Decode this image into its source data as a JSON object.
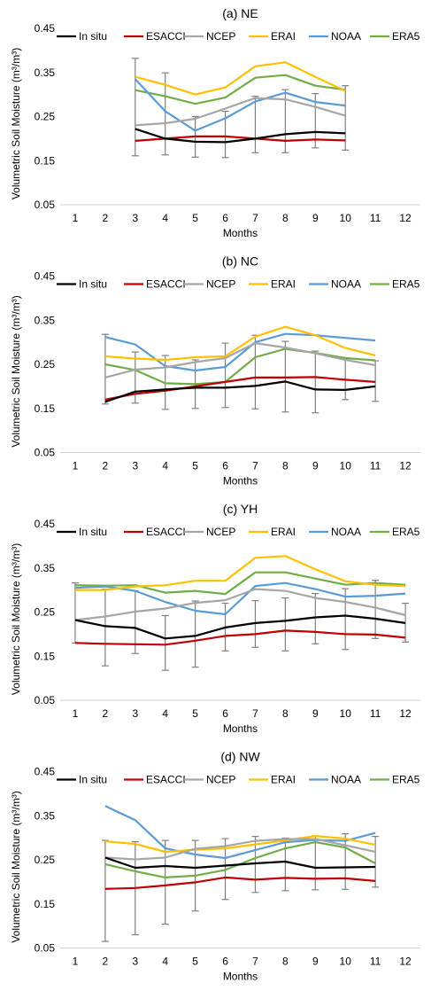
{
  "y_axis_label": "Volumetric Soil Moisture (m³/m³)",
  "x_axis_label": "Months",
  "legend": [
    {
      "key": "insitu",
      "label": "In situ",
      "color": "#000000"
    },
    {
      "key": "esacci",
      "label": "ESACCI",
      "color": "#c00000"
    },
    {
      "key": "ncep",
      "label": "NCEP",
      "color": "#a6a6a6"
    },
    {
      "key": "erai",
      "label": "ERAI",
      "color": "#ffc000"
    },
    {
      "key": "noaa",
      "label": "NOAA",
      "color": "#5b9bd5"
    },
    {
      "key": "era5",
      "label": "ERA5",
      "color": "#70ad47"
    }
  ],
  "chart_data": [
    {
      "type": "line",
      "title": "(a) NE",
      "xlabel": "Months",
      "ylabel": "Volumetric Soil Moisture (m³/m³)",
      "xlim": [
        0.5,
        12.5
      ],
      "ylim": [
        0.05,
        0.45
      ],
      "xticks": [
        "1",
        "2",
        "3",
        "4",
        "5",
        "6",
        "7",
        "8",
        "9",
        "10",
        "11",
        "12"
      ],
      "yticks": [
        "0.05",
        "0.15",
        "0.25",
        "0.35",
        "0.45"
      ],
      "legend_position": "top",
      "x": [
        3,
        4,
        5,
        6,
        7,
        8,
        9,
        10
      ],
      "series": [
        {
          "name": "In situ",
          "color": "#000000",
          "values": [
            0.222,
            0.2,
            0.193,
            0.192,
            0.2,
            0.21,
            0.215,
            0.212
          ],
          "error_low": [
            0.161,
            0.163,
            0.158,
            0.157,
            0.168,
            0.168,
            0.179,
            0.174
          ],
          "error_high": [
            0.382,
            0.349,
            0.25,
            0.262,
            0.296,
            0.311,
            0.302,
            0.32
          ]
        },
        {
          "name": "ESACCI",
          "color": "#c00000",
          "values": [
            0.195,
            0.2,
            0.205,
            0.205,
            0.2,
            0.195,
            0.198,
            0.196
          ]
        },
        {
          "name": "NCEP",
          "color": "#a6a6a6",
          "values": [
            0.23,
            0.235,
            0.245,
            0.268,
            0.292,
            0.289,
            0.272,
            0.252
          ]
        },
        {
          "name": "ERAI",
          "color": "#ffc000",
          "values": [
            0.34,
            0.322,
            0.3,
            0.316,
            0.364,
            0.373,
            0.34,
            0.308
          ]
        },
        {
          "name": "NOAA",
          "color": "#5b9bd5",
          "values": [
            0.335,
            0.262,
            0.218,
            0.246,
            0.284,
            0.304,
            0.283,
            0.275
          ]
        },
        {
          "name": "ERA5",
          "color": "#70ad47",
          "values": [
            0.31,
            0.296,
            0.279,
            0.293,
            0.338,
            0.344,
            0.32,
            0.311
          ]
        }
      ]
    },
    {
      "type": "line",
      "title": "(b) NC",
      "xlabel": "Months",
      "ylabel": "Volumetric Soil Moisture (m³/m³)",
      "xlim": [
        0.5,
        12.5
      ],
      "ylim": [
        0.05,
        0.45
      ],
      "xticks": [
        "1",
        "2",
        "3",
        "4",
        "5",
        "6",
        "7",
        "8",
        "9",
        "10",
        "11",
        "12"
      ],
      "yticks": [
        "0.05",
        "0.15",
        "0.25",
        "0.35",
        "0.45"
      ],
      "legend_position": "top",
      "x": [
        2,
        3,
        4,
        5,
        6,
        7,
        8,
        9,
        10,
        11
      ],
      "series": [
        {
          "name": "In situ",
          "color": "#000000",
          "values": [
            0.165,
            0.188,
            0.193,
            0.197,
            0.197,
            0.201,
            0.211,
            0.193,
            0.192,
            0.2
          ],
          "error_low": [
            0.16,
            0.162,
            0.148,
            0.15,
            0.152,
            0.149,
            0.142,
            0.14,
            0.17,
            0.166
          ],
          "error_high": [
            0.318,
            0.278,
            0.27,
            0.26,
            0.298,
            0.316,
            0.302,
            0.28,
            0.265,
            0.258
          ]
        },
        {
          "name": "ESACCI",
          "color": "#c00000",
          "values": [
            0.17,
            0.183,
            0.19,
            0.2,
            0.21,
            0.22,
            0.22,
            0.221,
            0.215,
            0.21
          ]
        },
        {
          "name": "NCEP",
          "color": "#a6a6a6",
          "values": [
            0.22,
            0.238,
            0.243,
            0.255,
            0.264,
            0.298,
            0.288,
            0.275,
            0.26,
            0.248
          ]
        },
        {
          "name": "ERAI",
          "color": "#ffc000",
          "values": [
            0.268,
            0.263,
            0.26,
            0.266,
            0.268,
            0.313,
            0.335,
            0.316,
            0.287,
            0.27
          ]
        },
        {
          "name": "NOAA",
          "color": "#5b9bd5",
          "values": [
            0.312,
            0.295,
            0.246,
            0.236,
            0.244,
            0.3,
            0.319,
            0.316,
            0.31,
            0.304
          ]
        },
        {
          "name": "ERA5",
          "color": "#70ad47",
          "values": [
            0.25,
            0.237,
            0.207,
            0.205,
            0.21,
            0.266,
            0.285,
            0.276,
            0.264,
            0.259
          ]
        }
      ]
    },
    {
      "type": "line",
      "title": "(c) YH",
      "xlabel": "Months",
      "ylabel": "Volumetric Soil Moisture (m³/m³)",
      "xlim": [
        0.5,
        12.5
      ],
      "ylim": [
        0.05,
        0.45
      ],
      "xticks": [
        "1",
        "2",
        "3",
        "4",
        "5",
        "6",
        "7",
        "8",
        "9",
        "10",
        "11",
        "12"
      ],
      "yticks": [
        "0.05",
        "0.15",
        "0.25",
        "0.35",
        "0.45"
      ],
      "legend_position": "top",
      "x": [
        1,
        2,
        3,
        4,
        5,
        6,
        7,
        8,
        9,
        10,
        11,
        12
      ],
      "series": [
        {
          "name": "In situ",
          "color": "#000000",
          "values": [
            0.232,
            0.218,
            0.214,
            0.19,
            0.196,
            0.215,
            0.225,
            0.23,
            0.238,
            0.242,
            0.235,
            0.225
          ],
          "error_low": [
            0.18,
            0.128,
            0.156,
            0.118,
            0.125,
            0.162,
            0.17,
            0.162,
            0.178,
            0.165,
            0.19,
            0.182
          ],
          "error_high": [
            0.316,
            0.302,
            0.298,
            0.242,
            0.275,
            0.27,
            0.276,
            0.282,
            0.292,
            0.303,
            0.322,
            0.27
          ]
        },
        {
          "name": "ESACCI",
          "color": "#c00000",
          "values": [
            0.18,
            0.178,
            0.177,
            0.176,
            0.185,
            0.196,
            0.2,
            0.208,
            0.205,
            0.2,
            0.199,
            0.192
          ]
        },
        {
          "name": "NCEP",
          "color": "#a6a6a6",
          "values": [
            0.232,
            0.24,
            0.251,
            0.258,
            0.271,
            0.277,
            0.302,
            0.298,
            0.282,
            0.273,
            0.26,
            0.243
          ]
        },
        {
          "name": "ERAI",
          "color": "#ffc000",
          "values": [
            0.3,
            0.3,
            0.308,
            0.311,
            0.321,
            0.321,
            0.373,
            0.377,
            0.347,
            0.32,
            0.312,
            0.309
          ]
        },
        {
          "name": "NOAA",
          "color": "#5b9bd5",
          "values": [
            0.305,
            0.308,
            0.298,
            0.273,
            0.253,
            0.245,
            0.309,
            0.316,
            0.302,
            0.285,
            0.287,
            0.292
          ]
        },
        {
          "name": "ERA5",
          "color": "#70ad47",
          "values": [
            0.311,
            0.31,
            0.311,
            0.294,
            0.298,
            0.291,
            0.34,
            0.34,
            0.326,
            0.312,
            0.316,
            0.312
          ]
        }
      ]
    },
    {
      "type": "line",
      "title": "(d) NW",
      "xlabel": "Months",
      "ylabel": "Volumetric Soil Moisture (m³/m³)",
      "xlim": [
        0.5,
        12.5
      ],
      "ylim": [
        0.05,
        0.45
      ],
      "xticks": [
        "1",
        "2",
        "3",
        "4",
        "5",
        "6",
        "7",
        "8",
        "9",
        "10",
        "11",
        "12"
      ],
      "yticks": [
        "0.05",
        "0.15",
        "0.25",
        "0.35",
        "0.45"
      ],
      "legend_position": "top",
      "x": [
        2,
        3,
        4,
        5,
        6,
        7,
        8,
        9,
        10,
        11
      ],
      "series": [
        {
          "name": "In situ",
          "color": "#000000",
          "values": [
            0.255,
            0.232,
            0.236,
            0.232,
            0.237,
            0.242,
            0.246,
            0.232,
            0.233,
            0.234
          ],
          "error_low": [
            0.065,
            0.08,
            0.104,
            0.134,
            0.16,
            0.176,
            0.18,
            0.182,
            0.183,
            0.188
          ],
          "error_high": [
            0.294,
            0.291,
            0.294,
            0.294,
            0.298,
            0.303,
            0.299,
            0.304,
            0.309,
            0.303
          ]
        },
        {
          "name": "ESACCI",
          "color": "#c00000",
          "values": [
            0.184,
            0.186,
            0.192,
            0.199,
            0.21,
            0.205,
            0.209,
            0.207,
            0.208,
            0.202
          ]
        },
        {
          "name": "NCEP",
          "color": "#a6a6a6",
          "values": [
            0.255,
            0.251,
            0.255,
            0.275,
            0.281,
            0.293,
            0.297,
            0.297,
            0.283,
            0.268
          ]
        },
        {
          "name": "ERAI",
          "color": "#ffc000",
          "values": [
            0.292,
            0.286,
            0.268,
            0.273,
            0.276,
            0.285,
            0.294,
            0.304,
            0.298,
            0.284
          ]
        },
        {
          "name": "NOAA",
          "color": "#5b9bd5",
          "values": [
            0.372,
            0.34,
            0.276,
            0.262,
            0.254,
            0.272,
            0.29,
            0.295,
            0.293,
            0.311
          ]
        },
        {
          "name": "ERA5",
          "color": "#70ad47",
          "values": [
            0.24,
            0.224,
            0.21,
            0.214,
            0.227,
            0.254,
            0.276,
            0.29,
            0.278,
            0.242
          ]
        }
      ]
    }
  ]
}
